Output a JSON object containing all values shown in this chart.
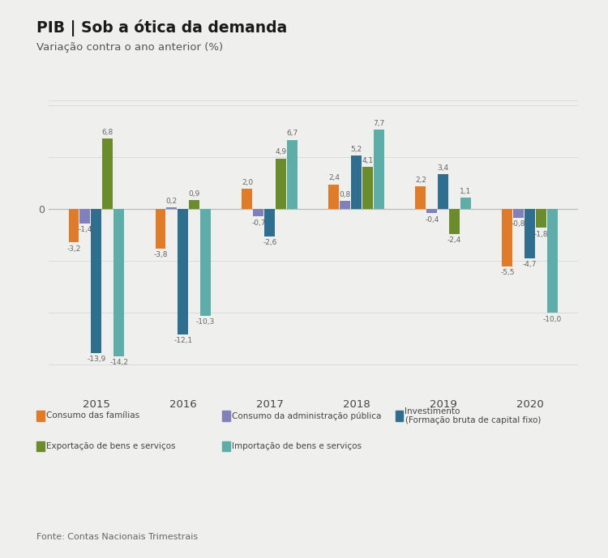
{
  "title": "PIB | Sob a ótica da demanda",
  "subtitle": "Variação contra o ano anterior (%)",
  "years": [
    2015,
    2016,
    2017,
    2018,
    2019,
    2020
  ],
  "series_names": [
    "Consumo das famílias",
    "Consumo da administração pública",
    "Investimento\n(Formação bruta de capital fixo)",
    "Exportação de bens e serviços",
    "Importação de bens e serviços"
  ],
  "series_data": [
    [
      -3.2,
      -3.8,
      2.0,
      2.4,
      2.2,
      -5.5
    ],
    [
      -1.4,
      0.2,
      -0.7,
      0.8,
      -0.4,
      -0.8
    ],
    [
      -13.9,
      -12.1,
      -2.6,
      5.2,
      3.4,
      -4.7
    ],
    [
      6.8,
      0.9,
      4.9,
      4.1,
      -2.4,
      -1.8
    ],
    [
      -14.2,
      -10.3,
      6.7,
      7.7,
      1.1,
      -10.0
    ]
  ],
  "colors": [
    "#E07B2A",
    "#8080BB",
    "#2E6E8E",
    "#6B8C2A",
    "#5DADA8"
  ],
  "background_color": "#EFEFED",
  "grid_color": "#D0D0D0",
  "fonte": "Fonte: Contas Nacionais Trimestrais",
  "ylim": [
    -17.5,
    10.5
  ],
  "bar_width": 0.13,
  "label_fontsize": 6.5,
  "legend_labels": [
    "Consumo das famílias",
    "Consumo da administração pública",
    "Investimento\n(Formação bruta de capital fixo)",
    "Exportação de bens e serviços",
    "Importação de bens e serviços"
  ]
}
